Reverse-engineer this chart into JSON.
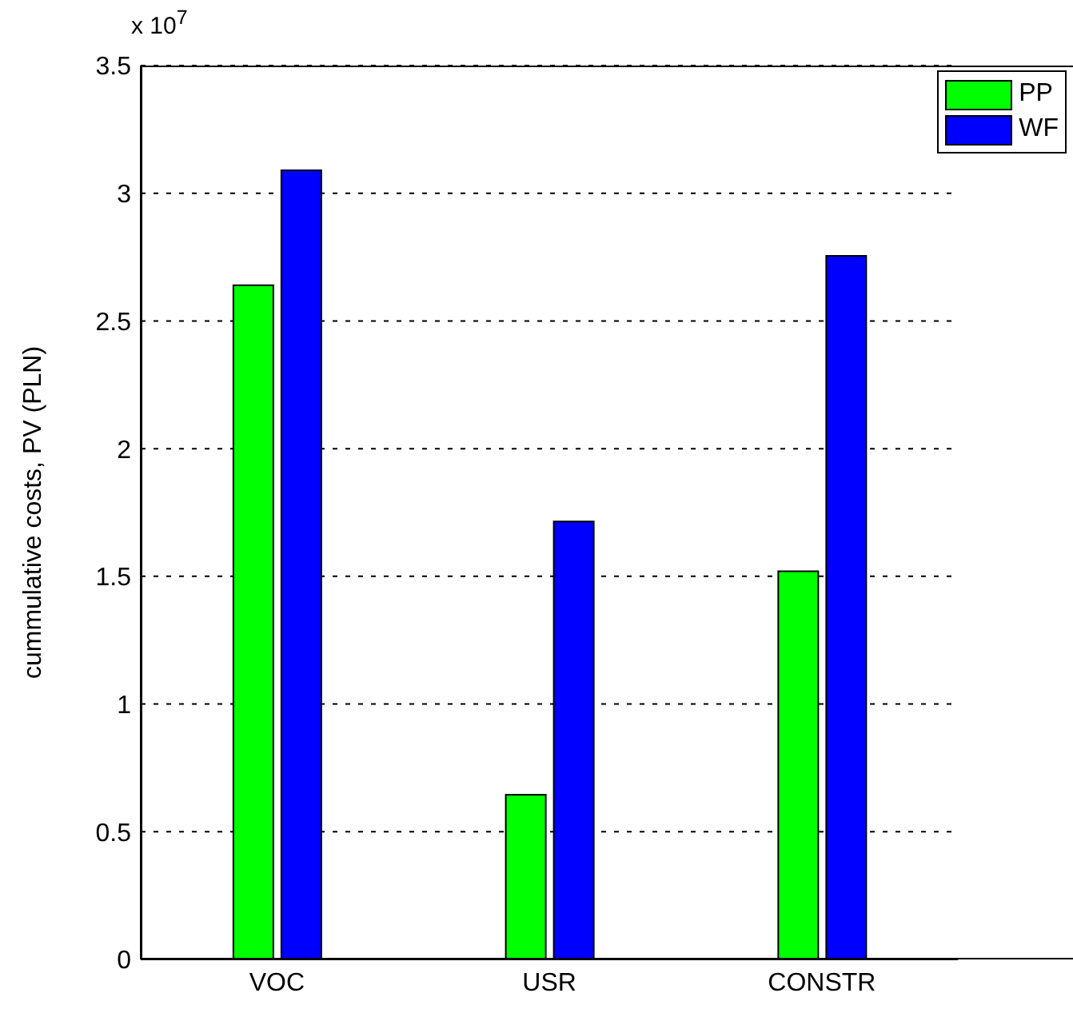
{
  "chart_data": {
    "type": "bar",
    "ylabel": "cummulative costs, PV (PLN)",
    "annotations": [
      "x 10$^{7}$"
    ],
    "categories": [
      "VOC",
      "USR",
      "CONSTR"
    ],
    "series": [
      {
        "name": "PP",
        "color": "#00ff00",
        "values": [
          2.64,
          0.645,
          1.52
        ]
      },
      {
        "name": "WF",
        "color": "#0000ff",
        "values": [
          3.09,
          1.715,
          2.755
        ]
      }
    ],
    "ylim": [
      0,
      3.5
    ],
    "yticks": [
      0,
      0.5,
      1,
      1.5,
      2,
      2.5,
      3,
      3.5
    ],
    "grid": "y",
    "legend": "top right"
  }
}
